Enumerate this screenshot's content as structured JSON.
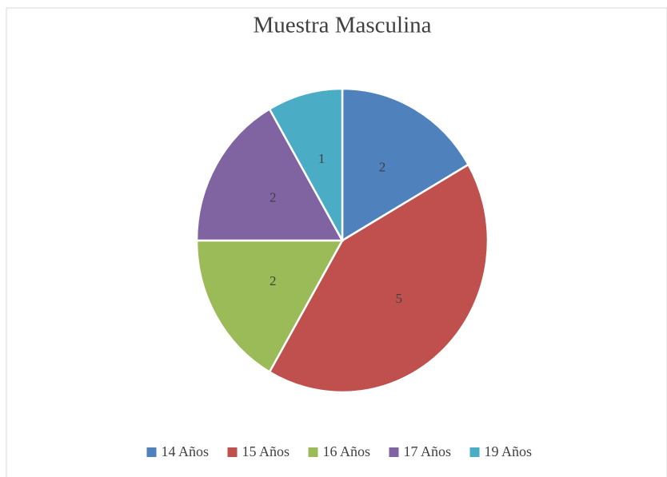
{
  "chart_data": {
    "type": "pie",
    "title": "Muestra Masculina",
    "categories": [
      "14 Años",
      "15 Años",
      "16 Años",
      "17 Años",
      "19 Años"
    ],
    "values": [
      2,
      5,
      2,
      2,
      1
    ],
    "colors": [
      "#4f81bd",
      "#c0504d",
      "#9bbb59",
      "#8064a2",
      "#4bacc6"
    ],
    "legend": "bottom"
  }
}
